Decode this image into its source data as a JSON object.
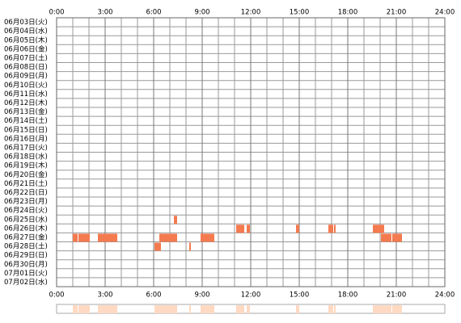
{
  "chart_data": {
    "type": "timeline",
    "categories": [
      "06月03日(火)",
      "06月04日(水)",
      "06月05日(木)",
      "06月06日(金)",
      "06月07日(土)",
      "06月08日(日)",
      "06月09日(月)",
      "06月10日(火)",
      "06月11日(水)",
      "06月12日(木)",
      "06月13日(金)",
      "06月14日(土)",
      "06月15日(日)",
      "06月16日(月)",
      "06月17日(火)",
      "06月18日(水)",
      "06月19日(木)",
      "06月20日(金)",
      "06月21日(土)",
      "06月22日(日)",
      "06月23日(月)",
      "06月24日(火)",
      "06月25日(水)",
      "06月26日(木)",
      "06月27日(金)",
      "06月28日(土)",
      "06月29日(日)",
      "06月30日(月)",
      "07月01日(火)",
      "07月02日(水)"
    ],
    "values": [
      [],
      [],
      [],
      [],
      [],
      [],
      [],
      [],
      [],
      [],
      [],
      [],
      [],
      [],
      [],
      [],
      [],
      [],
      [],
      [],
      [],
      [],
      [
        [
          7.25,
          7.45
        ]
      ],
      [
        [
          11.1,
          11.6
        ],
        [
          11.75,
          11.95
        ],
        [
          14.8,
          15.0
        ],
        [
          16.8,
          17.1
        ],
        [
          17.15,
          17.25
        ],
        [
          19.55,
          20.25
        ]
      ],
      [
        [
          1.0,
          1.3
        ],
        [
          1.35,
          2.05
        ],
        [
          2.55,
          3.75
        ],
        [
          6.35,
          7.45
        ],
        [
          8.9,
          9.75
        ],
        [
          20.05,
          20.7
        ],
        [
          20.75,
          21.35
        ]
      ],
      [
        [
          6.05,
          6.45
        ],
        [
          8.2,
          8.3
        ]
      ],
      [],
      [],
      [],
      []
    ],
    "color": "#f47a50",
    "summary_color": "#ffd9c2",
    "xlim": [
      0,
      24
    ],
    "xticks": [
      {
        "value": 0,
        "label": "0:00"
      },
      {
        "value": 3,
        "label": "3:00"
      },
      {
        "value": 6,
        "label": "6:00"
      },
      {
        "value": 9,
        "label": "9:00"
      },
      {
        "value": 12,
        "label": "12:00"
      },
      {
        "value": 15,
        "label": "15:00"
      },
      {
        "value": 18,
        "label": "18:00"
      },
      {
        "value": 21,
        "label": "21:00"
      },
      {
        "value": 24,
        "label": "24:00"
      }
    ],
    "grid": true
  }
}
